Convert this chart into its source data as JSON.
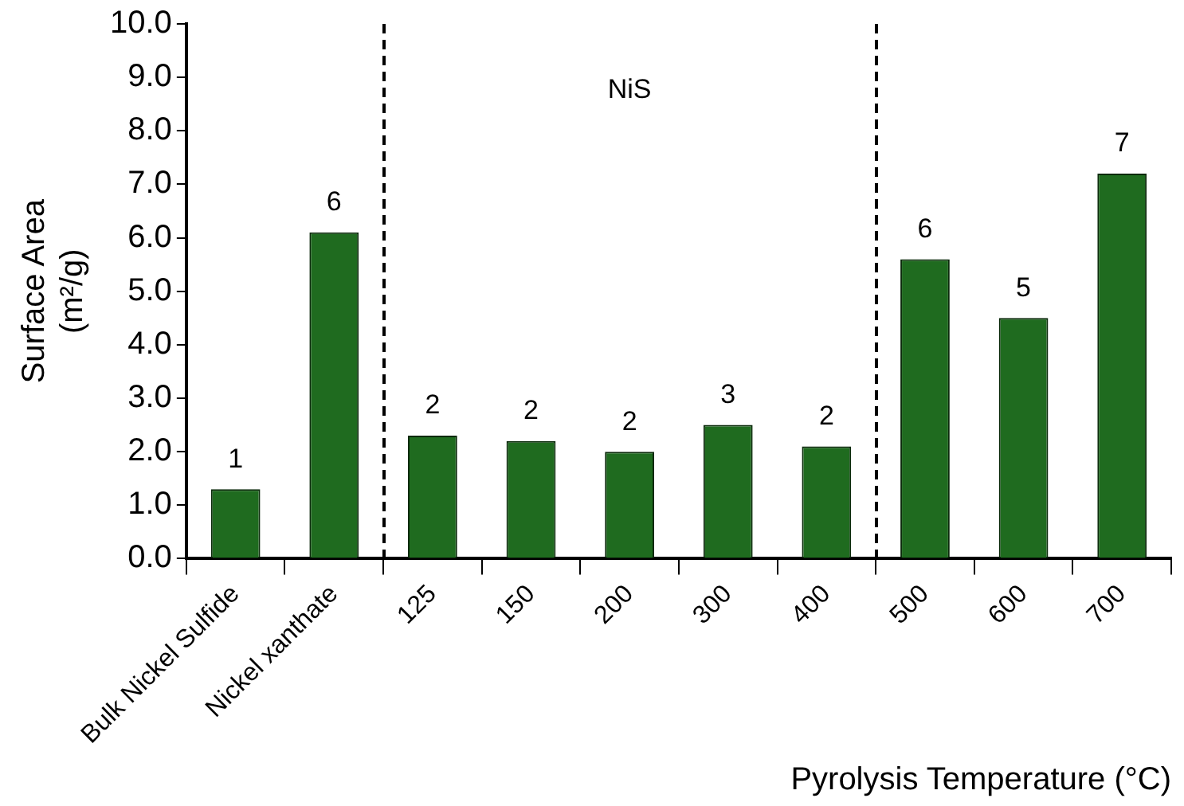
{
  "chart_data": {
    "type": "bar",
    "categories": [
      "Bulk Nickel Sulfide",
      "Nickel xanthate",
      "125",
      "150",
      "200",
      "300",
      "400",
      "500",
      "600",
      "700"
    ],
    "values": [
      1.3,
      6.1,
      2.3,
      2.2,
      2.0,
      2.5,
      2.1,
      5.6,
      4.5,
      7.2
    ],
    "value_labels": [
      "1",
      "6",
      "2",
      "2",
      "2",
      "3",
      "2",
      "6",
      "5",
      "7"
    ],
    "color": "#1f6b1f",
    "ylabel": "Surface Area (m²/g)",
    "xlabel": "Pyrolysis Temperature (°C)",
    "ylim": [
      0,
      10
    ],
    "yticks": [
      {
        "value": 0,
        "label": "0.0"
      },
      {
        "value": 1,
        "label": "1.0"
      },
      {
        "value": 2,
        "label": "2.0"
      },
      {
        "value": 3,
        "label": "3.0"
      },
      {
        "value": 4,
        "label": "4.0"
      },
      {
        "value": 5,
        "label": "5.0"
      },
      {
        "value": 6,
        "label": "6.0"
      },
      {
        "value": 7,
        "label": "7.0"
      },
      {
        "value": 8,
        "label": "8.0"
      },
      {
        "value": 9,
        "label": "9.0"
      },
      {
        "value": 10,
        "label": "10.0"
      }
    ],
    "annotations": [
      "NiS"
    ],
    "grid": false,
    "legend": false
  }
}
